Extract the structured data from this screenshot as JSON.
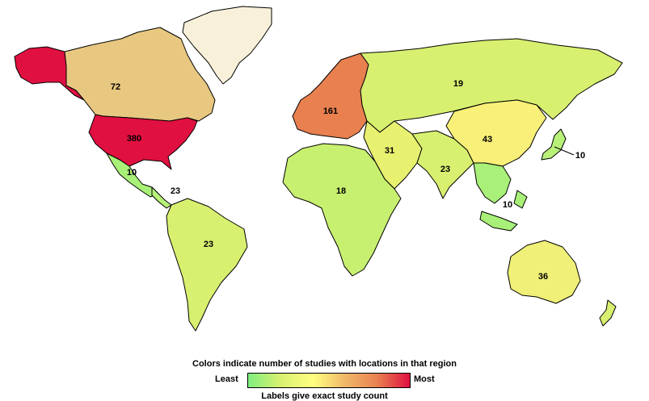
{
  "map": {
    "colors": {
      "least": "#80ee80",
      "mid": "#ffff80",
      "high": "#e88050",
      "most": "#e01040",
      "no_data": "#f8f0d8",
      "ocean": "#ffffff",
      "border": "#000000"
    },
    "regions": [
      {
        "id": "alaska",
        "name": "Alaska",
        "fill": "#e01040",
        "count": ""
      },
      {
        "id": "canada",
        "name": "Canada",
        "fill": "#e8c880",
        "count": "72"
      },
      {
        "id": "greenland",
        "name": "Greenland",
        "fill": "#f8f0d8",
        "count": ""
      },
      {
        "id": "usa",
        "name": "United States",
        "fill": "#e01040",
        "count": "380"
      },
      {
        "id": "mexico",
        "name": "Mexico",
        "fill": "#a8f078",
        "count": "10"
      },
      {
        "id": "central-america",
        "name": "Central America",
        "fill": "#b8f078",
        "count": "23"
      },
      {
        "id": "south-america",
        "name": "South America",
        "fill": "#d8f070",
        "count": "23"
      },
      {
        "id": "europe",
        "name": "Europe",
        "fill": "#e88050",
        "count": "161"
      },
      {
        "id": "russia",
        "name": "Russia",
        "fill": "#d8f070",
        "count": "19"
      },
      {
        "id": "africa",
        "name": "Africa",
        "fill": "#c8f070",
        "count": "18"
      },
      {
        "id": "middle-east",
        "name": "Middle East",
        "fill": "#e8f070",
        "count": "31"
      },
      {
        "id": "south-asia",
        "name": "South Asia",
        "fill": "#d8f070",
        "count": "23"
      },
      {
        "id": "east-asia",
        "name": "East Asia",
        "fill": "#f8f078",
        "count": "43"
      },
      {
        "id": "japan",
        "name": "Japan",
        "fill": "#b8f078",
        "count": "10"
      },
      {
        "id": "southeast-asia",
        "name": "Southeast Asia",
        "fill": "#a8f078",
        "count": "10"
      },
      {
        "id": "australia",
        "name": "Australia",
        "fill": "#f0f078",
        "count": "36"
      },
      {
        "id": "new-zealand",
        "name": "New Zealand",
        "fill": "#d8f070",
        "count": ""
      }
    ]
  },
  "legend": {
    "title": "Colors indicate number of studies with locations in that region",
    "least_label": "Least",
    "most_label": "Most",
    "gradient_colors": [
      "#80ee80",
      "#d8f070",
      "#ffff80",
      "#f0b868",
      "#e88050",
      "#e01040"
    ],
    "footer": "Labels give exact study count"
  }
}
